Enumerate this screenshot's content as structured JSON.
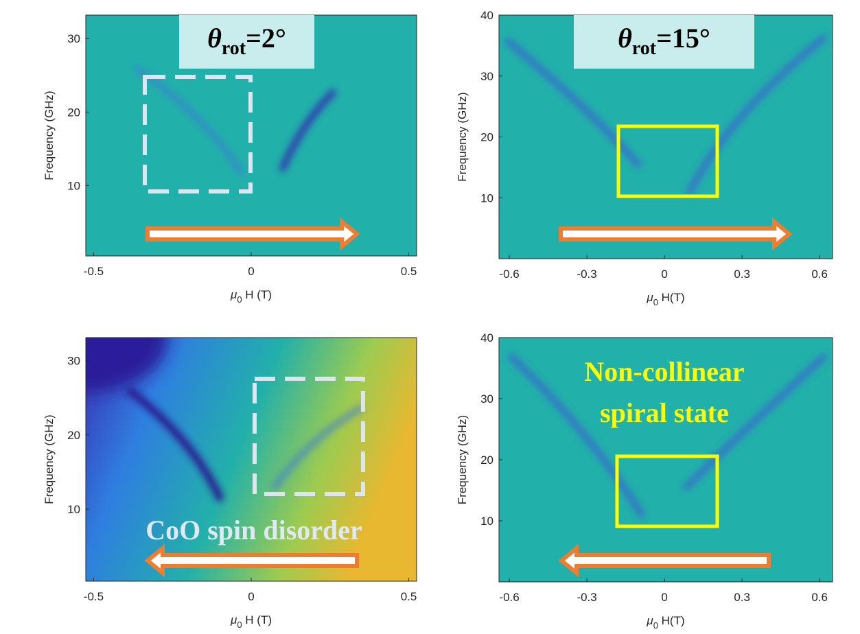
{
  "chart_data": [
    {
      "type": "heatmap",
      "xlabel": {
        "symbol": "μ",
        "subscript": "0",
        "text": " H (T)"
      },
      "ylabel": "Frequency (GHz)",
      "xlim": [
        -0.525,
        0.525
      ],
      "ylim": [
        0.4,
        33.2
      ],
      "xticks": [
        -0.5,
        0,
        0.5
      ],
      "yticks": [
        10,
        20,
        30
      ],
      "annotation": {
        "symbol": "θ",
        "subscript": "rot",
        "text": "=2°"
      }
    },
    {
      "type": "heatmap",
      "xlabel": {
        "symbol": "μ",
        "subscript": "0",
        "text": " H(T)"
      },
      "ylabel": "Frequency (GHz)",
      "xlim": [
        -0.64,
        0.65
      ],
      "ylim": [
        0,
        40
      ],
      "xticks": [
        -0.6,
        -0.3,
        0,
        0.3,
        0.6
      ],
      "yticks": [
        10,
        20,
        30,
        40
      ],
      "annotation": {
        "symbol": "θ",
        "subscript": "rot",
        "text": "=15°"
      }
    },
    {
      "type": "heatmap",
      "xlabel": {
        "symbol": "μ",
        "subscript": "0",
        "text": " H (T)"
      },
      "ylabel": "Frequency (GHz)",
      "xlim": [
        -0.525,
        0.525
      ],
      "ylim": [
        0.3,
        33.1
      ],
      "xticks": [
        -0.5,
        0,
        0.5
      ],
      "yticks": [
        10,
        20,
        30
      ],
      "annotation_lines": [
        "CoO spin disorder"
      ]
    },
    {
      "type": "heatmap",
      "xlabel": {
        "symbol": "μ",
        "subscript": "0",
        "text": " H(T)"
      },
      "ylabel": "Frequency (GHz)",
      "xlim": [
        -0.64,
        0.65
      ],
      "ylim": [
        0,
        40
      ],
      "xticks": [
        -0.6,
        -0.3,
        0,
        0.3,
        0.6
      ],
      "yticks": [
        10,
        20,
        30,
        40
      ],
      "annotation_lines": [
        "Non-collinear",
        "spiral state"
      ]
    }
  ]
}
